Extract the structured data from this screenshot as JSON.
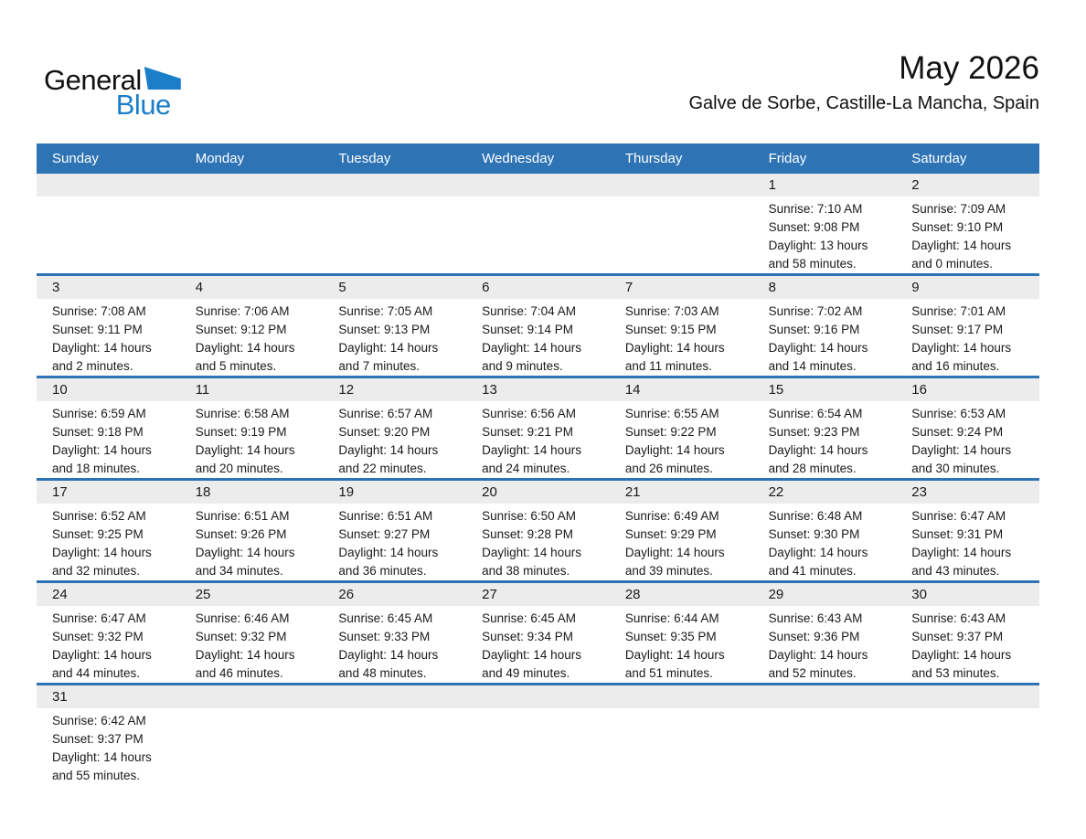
{
  "logo": {
    "general": "General",
    "blue": "Blue"
  },
  "header": {
    "title": "May 2026",
    "subtitle": "Galve de Sorbe, Castille-La Mancha, Spain"
  },
  "weekdays": [
    "Sunday",
    "Monday",
    "Tuesday",
    "Wednesday",
    "Thursday",
    "Friday",
    "Saturday"
  ],
  "colors": {
    "header_bg": "#2E74B5",
    "divider": "#2E74B5",
    "day_strip_bg": "#ECECEC",
    "logo_blue": "#1B7EC8"
  },
  "weeks": [
    [
      null,
      null,
      null,
      null,
      null,
      {
        "day": "1",
        "lines": [
          "Sunrise: 7:10 AM",
          "Sunset: 9:08 PM",
          "Daylight: 13 hours",
          "and 58 minutes."
        ]
      },
      {
        "day": "2",
        "lines": [
          "Sunrise: 7:09 AM",
          "Sunset: 9:10 PM",
          "Daylight: 14 hours",
          "and 0 minutes."
        ]
      }
    ],
    [
      {
        "day": "3",
        "lines": [
          "Sunrise: 7:08 AM",
          "Sunset: 9:11 PM",
          "Daylight: 14 hours",
          "and 2 minutes."
        ]
      },
      {
        "day": "4",
        "lines": [
          "Sunrise: 7:06 AM",
          "Sunset: 9:12 PM",
          "Daylight: 14 hours",
          "and 5 minutes."
        ]
      },
      {
        "day": "5",
        "lines": [
          "Sunrise: 7:05 AM",
          "Sunset: 9:13 PM",
          "Daylight: 14 hours",
          "and 7 minutes."
        ]
      },
      {
        "day": "6",
        "lines": [
          "Sunrise: 7:04 AM",
          "Sunset: 9:14 PM",
          "Daylight: 14 hours",
          "and 9 minutes."
        ]
      },
      {
        "day": "7",
        "lines": [
          "Sunrise: 7:03 AM",
          "Sunset: 9:15 PM",
          "Daylight: 14 hours",
          "and 11 minutes."
        ]
      },
      {
        "day": "8",
        "lines": [
          "Sunrise: 7:02 AM",
          "Sunset: 9:16 PM",
          "Daylight: 14 hours",
          "and 14 minutes."
        ]
      },
      {
        "day": "9",
        "lines": [
          "Sunrise: 7:01 AM",
          "Sunset: 9:17 PM",
          "Daylight: 14 hours",
          "and 16 minutes."
        ]
      }
    ],
    [
      {
        "day": "10",
        "lines": [
          "Sunrise: 6:59 AM",
          "Sunset: 9:18 PM",
          "Daylight: 14 hours",
          "and 18 minutes."
        ]
      },
      {
        "day": "11",
        "lines": [
          "Sunrise: 6:58 AM",
          "Sunset: 9:19 PM",
          "Daylight: 14 hours",
          "and 20 minutes."
        ]
      },
      {
        "day": "12",
        "lines": [
          "Sunrise: 6:57 AM",
          "Sunset: 9:20 PM",
          "Daylight: 14 hours",
          "and 22 minutes."
        ]
      },
      {
        "day": "13",
        "lines": [
          "Sunrise: 6:56 AM",
          "Sunset: 9:21 PM",
          "Daylight: 14 hours",
          "and 24 minutes."
        ]
      },
      {
        "day": "14",
        "lines": [
          "Sunrise: 6:55 AM",
          "Sunset: 9:22 PM",
          "Daylight: 14 hours",
          "and 26 minutes."
        ]
      },
      {
        "day": "15",
        "lines": [
          "Sunrise: 6:54 AM",
          "Sunset: 9:23 PM",
          "Daylight: 14 hours",
          "and 28 minutes."
        ]
      },
      {
        "day": "16",
        "lines": [
          "Sunrise: 6:53 AM",
          "Sunset: 9:24 PM",
          "Daylight: 14 hours",
          "and 30 minutes."
        ]
      }
    ],
    [
      {
        "day": "17",
        "lines": [
          "Sunrise: 6:52 AM",
          "Sunset: 9:25 PM",
          "Daylight: 14 hours",
          "and 32 minutes."
        ]
      },
      {
        "day": "18",
        "lines": [
          "Sunrise: 6:51 AM",
          "Sunset: 9:26 PM",
          "Daylight: 14 hours",
          "and 34 minutes."
        ]
      },
      {
        "day": "19",
        "lines": [
          "Sunrise: 6:51 AM",
          "Sunset: 9:27 PM",
          "Daylight: 14 hours",
          "and 36 minutes."
        ]
      },
      {
        "day": "20",
        "lines": [
          "Sunrise: 6:50 AM",
          "Sunset: 9:28 PM",
          "Daylight: 14 hours",
          "and 38 minutes."
        ]
      },
      {
        "day": "21",
        "lines": [
          "Sunrise: 6:49 AM",
          "Sunset: 9:29 PM",
          "Daylight: 14 hours",
          "and 39 minutes."
        ]
      },
      {
        "day": "22",
        "lines": [
          "Sunrise: 6:48 AM",
          "Sunset: 9:30 PM",
          "Daylight: 14 hours",
          "and 41 minutes."
        ]
      },
      {
        "day": "23",
        "lines": [
          "Sunrise: 6:47 AM",
          "Sunset: 9:31 PM",
          "Daylight: 14 hours",
          "and 43 minutes."
        ]
      }
    ],
    [
      {
        "day": "24",
        "lines": [
          "Sunrise: 6:47 AM",
          "Sunset: 9:32 PM",
          "Daylight: 14 hours",
          "and 44 minutes."
        ]
      },
      {
        "day": "25",
        "lines": [
          "Sunrise: 6:46 AM",
          "Sunset: 9:32 PM",
          "Daylight: 14 hours",
          "and 46 minutes."
        ]
      },
      {
        "day": "26",
        "lines": [
          "Sunrise: 6:45 AM",
          "Sunset: 9:33 PM",
          "Daylight: 14 hours",
          "and 48 minutes."
        ]
      },
      {
        "day": "27",
        "lines": [
          "Sunrise: 6:45 AM",
          "Sunset: 9:34 PM",
          "Daylight: 14 hours",
          "and 49 minutes."
        ]
      },
      {
        "day": "28",
        "lines": [
          "Sunrise: 6:44 AM",
          "Sunset: 9:35 PM",
          "Daylight: 14 hours",
          "and 51 minutes."
        ]
      },
      {
        "day": "29",
        "lines": [
          "Sunrise: 6:43 AM",
          "Sunset: 9:36 PM",
          "Daylight: 14 hours",
          "and 52 minutes."
        ]
      },
      {
        "day": "30",
        "lines": [
          "Sunrise: 6:43 AM",
          "Sunset: 9:37 PM",
          "Daylight: 14 hours",
          "and 53 minutes."
        ]
      }
    ],
    [
      {
        "day": "31",
        "lines": [
          "Sunrise: 6:42 AM",
          "Sunset: 9:37 PM",
          "Daylight: 14 hours",
          "and 55 minutes."
        ]
      },
      null,
      null,
      null,
      null,
      null,
      null
    ]
  ]
}
